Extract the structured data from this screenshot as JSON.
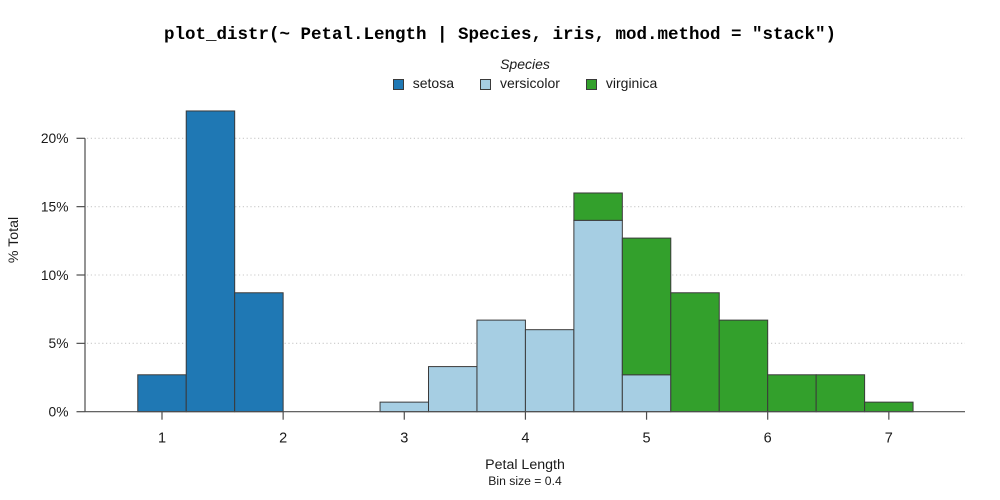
{
  "title": "plot_distr(~ Petal.Length | Species, iris, mod.method = \"stack\")",
  "legend": {
    "title": "Species",
    "position": "top-center",
    "items": [
      {
        "label": "setosa",
        "color": "#1F78B4"
      },
      {
        "label": "versicolor",
        "color": "#A6CEE3"
      },
      {
        "label": "virginica",
        "color": "#33A02C"
      }
    ]
  },
  "chart_data": {
    "type": "bar",
    "subtype": "stacked-histogram",
    "title": "plot_distr(~ Petal.Length | Species, iris, mod.method = \"stack\")",
    "xlabel": "Petal Length",
    "bin_label": "Bin size = 0.4",
    "ylabel": "% Total",
    "bin_size": 0.4,
    "grid": "dotted-horizontal",
    "legend_position": "top-center",
    "xlim": [
      0.37,
      7.63
    ],
    "ylim": [
      0,
      22.4
    ],
    "x_ticks": [
      1,
      2,
      3,
      4,
      5,
      6,
      7
    ],
    "y_ticks": [
      {
        "value": 0,
        "label": "0%"
      },
      {
        "value": 5,
        "label": "5%"
      },
      {
        "value": 10,
        "label": "10%"
      },
      {
        "value": 15,
        "label": "15%"
      },
      {
        "value": 20,
        "label": "20%"
      }
    ],
    "series_order": [
      "setosa",
      "versicolor",
      "virginica"
    ],
    "series_colors": {
      "setosa": "#1F78B4",
      "versicolor": "#A6CEE3",
      "virginica": "#33A02C"
    },
    "bins": [
      {
        "x0": 0.8,
        "x1": 1.2,
        "segments": [
          {
            "series": "setosa",
            "pct": 2.7
          }
        ]
      },
      {
        "x0": 1.2,
        "x1": 1.6,
        "segments": [
          {
            "series": "setosa",
            "pct": 22.0
          }
        ]
      },
      {
        "x0": 1.6,
        "x1": 2.0,
        "segments": [
          {
            "series": "setosa",
            "pct": 8.7
          }
        ]
      },
      {
        "x0": 2.8,
        "x1": 3.2,
        "segments": [
          {
            "series": "versicolor",
            "pct": 0.7
          }
        ]
      },
      {
        "x0": 3.2,
        "x1": 3.6,
        "segments": [
          {
            "series": "versicolor",
            "pct": 3.3
          }
        ]
      },
      {
        "x0": 3.6,
        "x1": 4.0,
        "segments": [
          {
            "series": "versicolor",
            "pct": 6.7
          }
        ]
      },
      {
        "x0": 4.0,
        "x1": 4.4,
        "segments": [
          {
            "series": "versicolor",
            "pct": 6.0
          }
        ]
      },
      {
        "x0": 4.4,
        "x1": 4.8,
        "segments": [
          {
            "series": "versicolor",
            "pct": 14.0
          },
          {
            "series": "virginica",
            "pct": 2.0
          }
        ]
      },
      {
        "x0": 4.8,
        "x1": 5.2,
        "segments": [
          {
            "series": "versicolor",
            "pct": 2.7
          },
          {
            "series": "virginica",
            "pct": 10.0
          }
        ]
      },
      {
        "x0": 5.2,
        "x1": 5.6,
        "segments": [
          {
            "series": "virginica",
            "pct": 8.7
          }
        ]
      },
      {
        "x0": 5.6,
        "x1": 6.0,
        "segments": [
          {
            "series": "virginica",
            "pct": 6.7
          }
        ]
      },
      {
        "x0": 6.0,
        "x1": 6.4,
        "segments": [
          {
            "series": "virginica",
            "pct": 2.7
          }
        ]
      },
      {
        "x0": 6.4,
        "x1": 6.8,
        "segments": [
          {
            "series": "virginica",
            "pct": 2.7
          }
        ]
      },
      {
        "x0": 6.8,
        "x1": 7.2,
        "segments": [
          {
            "series": "virginica",
            "pct": 0.7
          }
        ]
      }
    ]
  },
  "colors": {
    "background": "#FFFFFF",
    "bar_stroke": "#3A3A3A",
    "axis": "#4E4E4E",
    "grid": "#C9C9C9",
    "text": "#1A1A1A"
  }
}
